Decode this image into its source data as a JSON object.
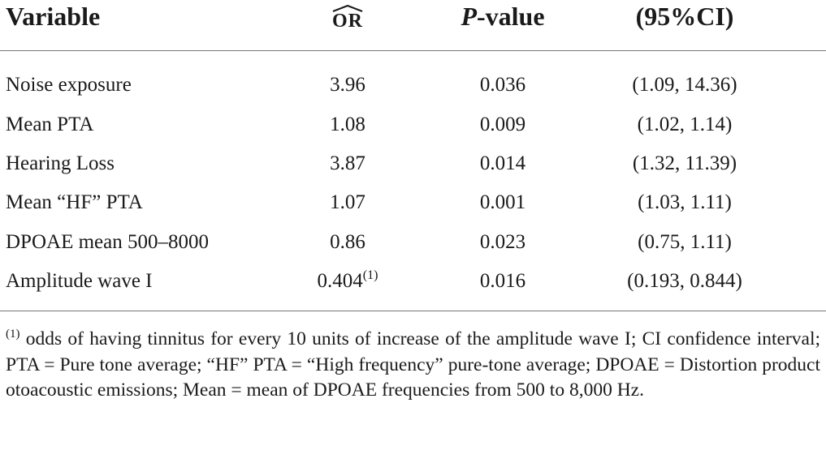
{
  "table": {
    "headers": {
      "variable": "Variable",
      "or": "OR",
      "p_value_italic": "P",
      "p_value_rest": "-value",
      "ci": "(95%CI)"
    },
    "rows": [
      {
        "variable": "Noise exposure",
        "or": "3.96",
        "or_sup": "",
        "p_value": "0.036",
        "ci": "(1.09, 14.36)"
      },
      {
        "variable": "Mean PTA",
        "or": "1.08",
        "or_sup": "",
        "p_value": "0.009",
        "ci": "(1.02, 1.14)"
      },
      {
        "variable": "Hearing Loss",
        "or": "3.87",
        "or_sup": "",
        "p_value": "0.014",
        "ci": "(1.32, 11.39)"
      },
      {
        "variable": "Mean “HF” PTA",
        "or": "1.07",
        "or_sup": "",
        "p_value": "0.001",
        "ci": "(1.03, 1.11)"
      },
      {
        "variable": "DPOAE mean 500–8000",
        "or": "0.86",
        "or_sup": "",
        "p_value": "0.023",
        "ci": "(0.75, 1.11)"
      },
      {
        "variable": "Amplitude wave I",
        "or": "0.404",
        "or_sup": "(1)",
        "p_value": "0.016",
        "ci": "(0.193, 0.844)"
      }
    ]
  },
  "footnote": {
    "marker": "(1)",
    "text": " odds of having tinnitus for every 10 units of increase of the amplitude wave I; CI confidence interval; PTA = Pure tone average; “HF” PTA = “High frequency” pure-tone average; DPOAE = Distortion product otoacoustic emissions; Mean = mean of DPOAE frequencies from 500 to 8,000 Hz."
  }
}
